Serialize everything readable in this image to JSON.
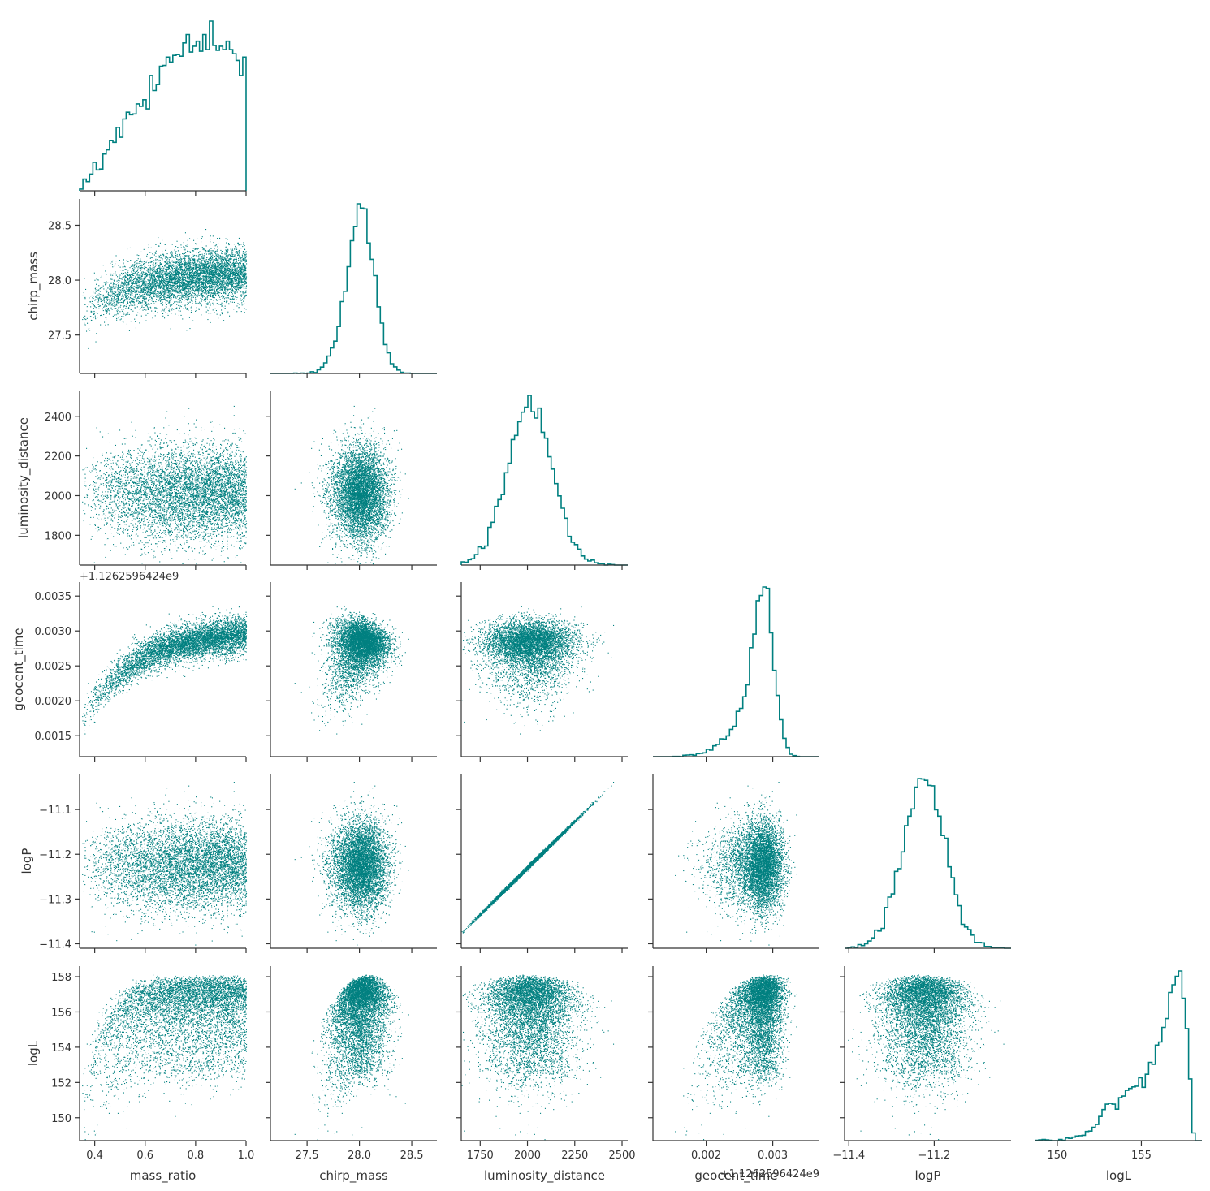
{
  "chart_data": {
    "type": "corner",
    "variables": [
      "mass_ratio",
      "chirp_mass",
      "luminosity_distance",
      "geocent_time",
      "logP",
      "logL"
    ],
    "color": "#008080",
    "offset_labels": {
      "geocent_time": "+1.1262596424e9"
    },
    "axes": {
      "mass_ratio": {
        "range": [
          0.34,
          1.0
        ],
        "ticks": [
          "0.4",
          "0.6",
          "0.8",
          "1.0"
        ]
      },
      "chirp_mass": {
        "range": [
          27.15,
          28.74
        ],
        "ticks": [
          "27.5",
          "28.0",
          "28.5"
        ]
      },
      "luminosity_distance": {
        "range": [
          1650,
          2530
        ],
        "ticks": [
          "1750",
          "2000",
          "2250",
          "2500"
        ]
      },
      "geocent_time": {
        "range": [
          0.0012,
          0.0037
        ],
        "ticks": [
          "0.0015",
          "0.0020",
          "0.0025",
          "0.0030",
          "0.0035"
        ],
        "x_ticks": [
          "0.002",
          "0.003"
        ]
      },
      "logP": {
        "range": [
          -11.41,
          -11.02
        ],
        "ticks": [
          "−11.4",
          "−11.3",
          "−11.2",
          "−11.1"
        ],
        "x_ticks": [
          "−11.4",
          "−11.2"
        ]
      },
      "logL": {
        "range": [
          148.7,
          158.6
        ],
        "ticks": [
          "150",
          "152",
          "154",
          "156",
          "158"
        ],
        "x_ticks": [
          "150",
          "155"
        ]
      }
    },
    "marginals": {
      "mass_ratio": {
        "mean": null,
        "shape": "rising",
        "peak": 0.85
      },
      "chirp_mass": {
        "mean": 28.07,
        "sd": 0.12
      },
      "luminosity_distance": {
        "mean": 2010,
        "sd": 120
      },
      "geocent_time": {
        "mean": 0.00293,
        "sd": 0.00015
      },
      "logP": {
        "mean": -11.225,
        "sd": 0.05
      },
      "logL": {
        "max": 158.1,
        "shape": "skewed-left"
      }
    },
    "grid": false,
    "layout": "lower-triangle"
  }
}
